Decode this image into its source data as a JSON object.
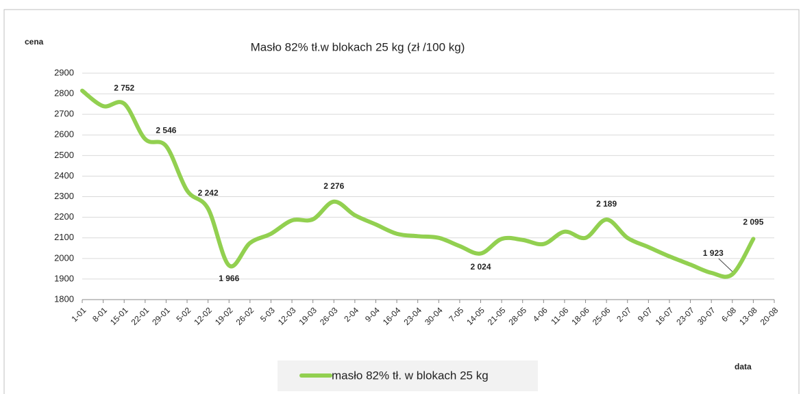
{
  "chart_data": {
    "type": "line",
    "title": "Masło 82% tł.w blokach  25 kg (zł /100 kg)",
    "y_label": "cena",
    "x_label": "data",
    "categories": [
      "1-01",
      "8-01",
      "15-01",
      "22-01",
      "29-01",
      "5-02",
      "12-02",
      "19-02",
      "26-02",
      "5-03",
      "12-03",
      "19-03",
      "26-03",
      "2-04",
      "9-04",
      "16-04",
      "23-04",
      "30-04",
      "7-05",
      "14-05",
      "21-05",
      "28-05",
      "4-06",
      "11-06",
      "18-06",
      "25-06",
      "2-07",
      "9-07",
      "16-07",
      "23-07",
      "30-07",
      "6-08",
      "13-08",
      "20-08"
    ],
    "series": [
      {
        "name": "masło 82% tł. w blokach 25 kg",
        "color": "#92d050",
        "values": [
          2815,
          2740,
          2752,
          2580,
          2546,
          2330,
          2242,
          1966,
          2075,
          2120,
          2185,
          2190,
          2276,
          2210,
          2165,
          2120,
          2108,
          2100,
          2060,
          2024,
          2095,
          2090,
          2070,
          2130,
          2100,
          2189,
          2100,
          2055,
          2010,
          1970,
          1930,
          1923,
          2095,
          null
        ],
        "value_labels": [
          null,
          null,
          "2 752",
          null,
          "2 546",
          null,
          "2 242",
          "1 966",
          null,
          null,
          null,
          null,
          "2 276",
          null,
          null,
          null,
          null,
          null,
          null,
          "2 024",
          null,
          null,
          null,
          null,
          null,
          "2 189",
          null,
          null,
          null,
          null,
          null,
          "1 923",
          "2 095",
          null
        ]
      }
    ],
    "ylim": [
      1800,
      2900
    ],
    "yticks": [
      1800,
      1900,
      2000,
      2100,
      2200,
      2300,
      2400,
      2500,
      2600,
      2700,
      2800,
      2900
    ],
    "grid": true,
    "legend": "bottom"
  }
}
